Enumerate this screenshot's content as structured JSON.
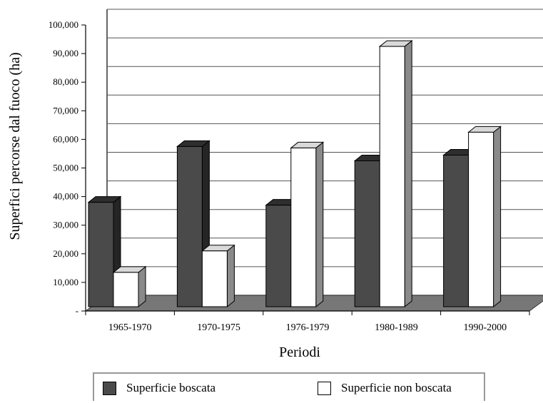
{
  "chart_data": {
    "type": "bar",
    "title": "",
    "xlabel": "Periodi",
    "ylabel": "Superfici percorse dal fuoco (ha)",
    "categories": [
      "1965-1970",
      "1970-1975",
      "1976-1979",
      "1980-1989",
      "1990-2000"
    ],
    "series": [
      {
        "name": "Superficie boscata",
        "values": [
          38000,
          57500,
          37000,
          52500,
          54500
        ],
        "color": "#4a4a4a"
      },
      {
        "name": "Superficie non boscata",
        "values": [
          13500,
          21000,
          57000,
          92500,
          62500
        ],
        "color": "#ffffff"
      }
    ],
    "ylim": [
      0,
      100000
    ],
    "yticks": [
      "-",
      "10,000",
      "20,000",
      "30,000",
      "40,000",
      "50,000",
      "60,000",
      "70,000",
      "80,000",
      "90,000",
      "100,000"
    ],
    "grid": true,
    "style_3d": true,
    "legend_position": "bottom"
  }
}
